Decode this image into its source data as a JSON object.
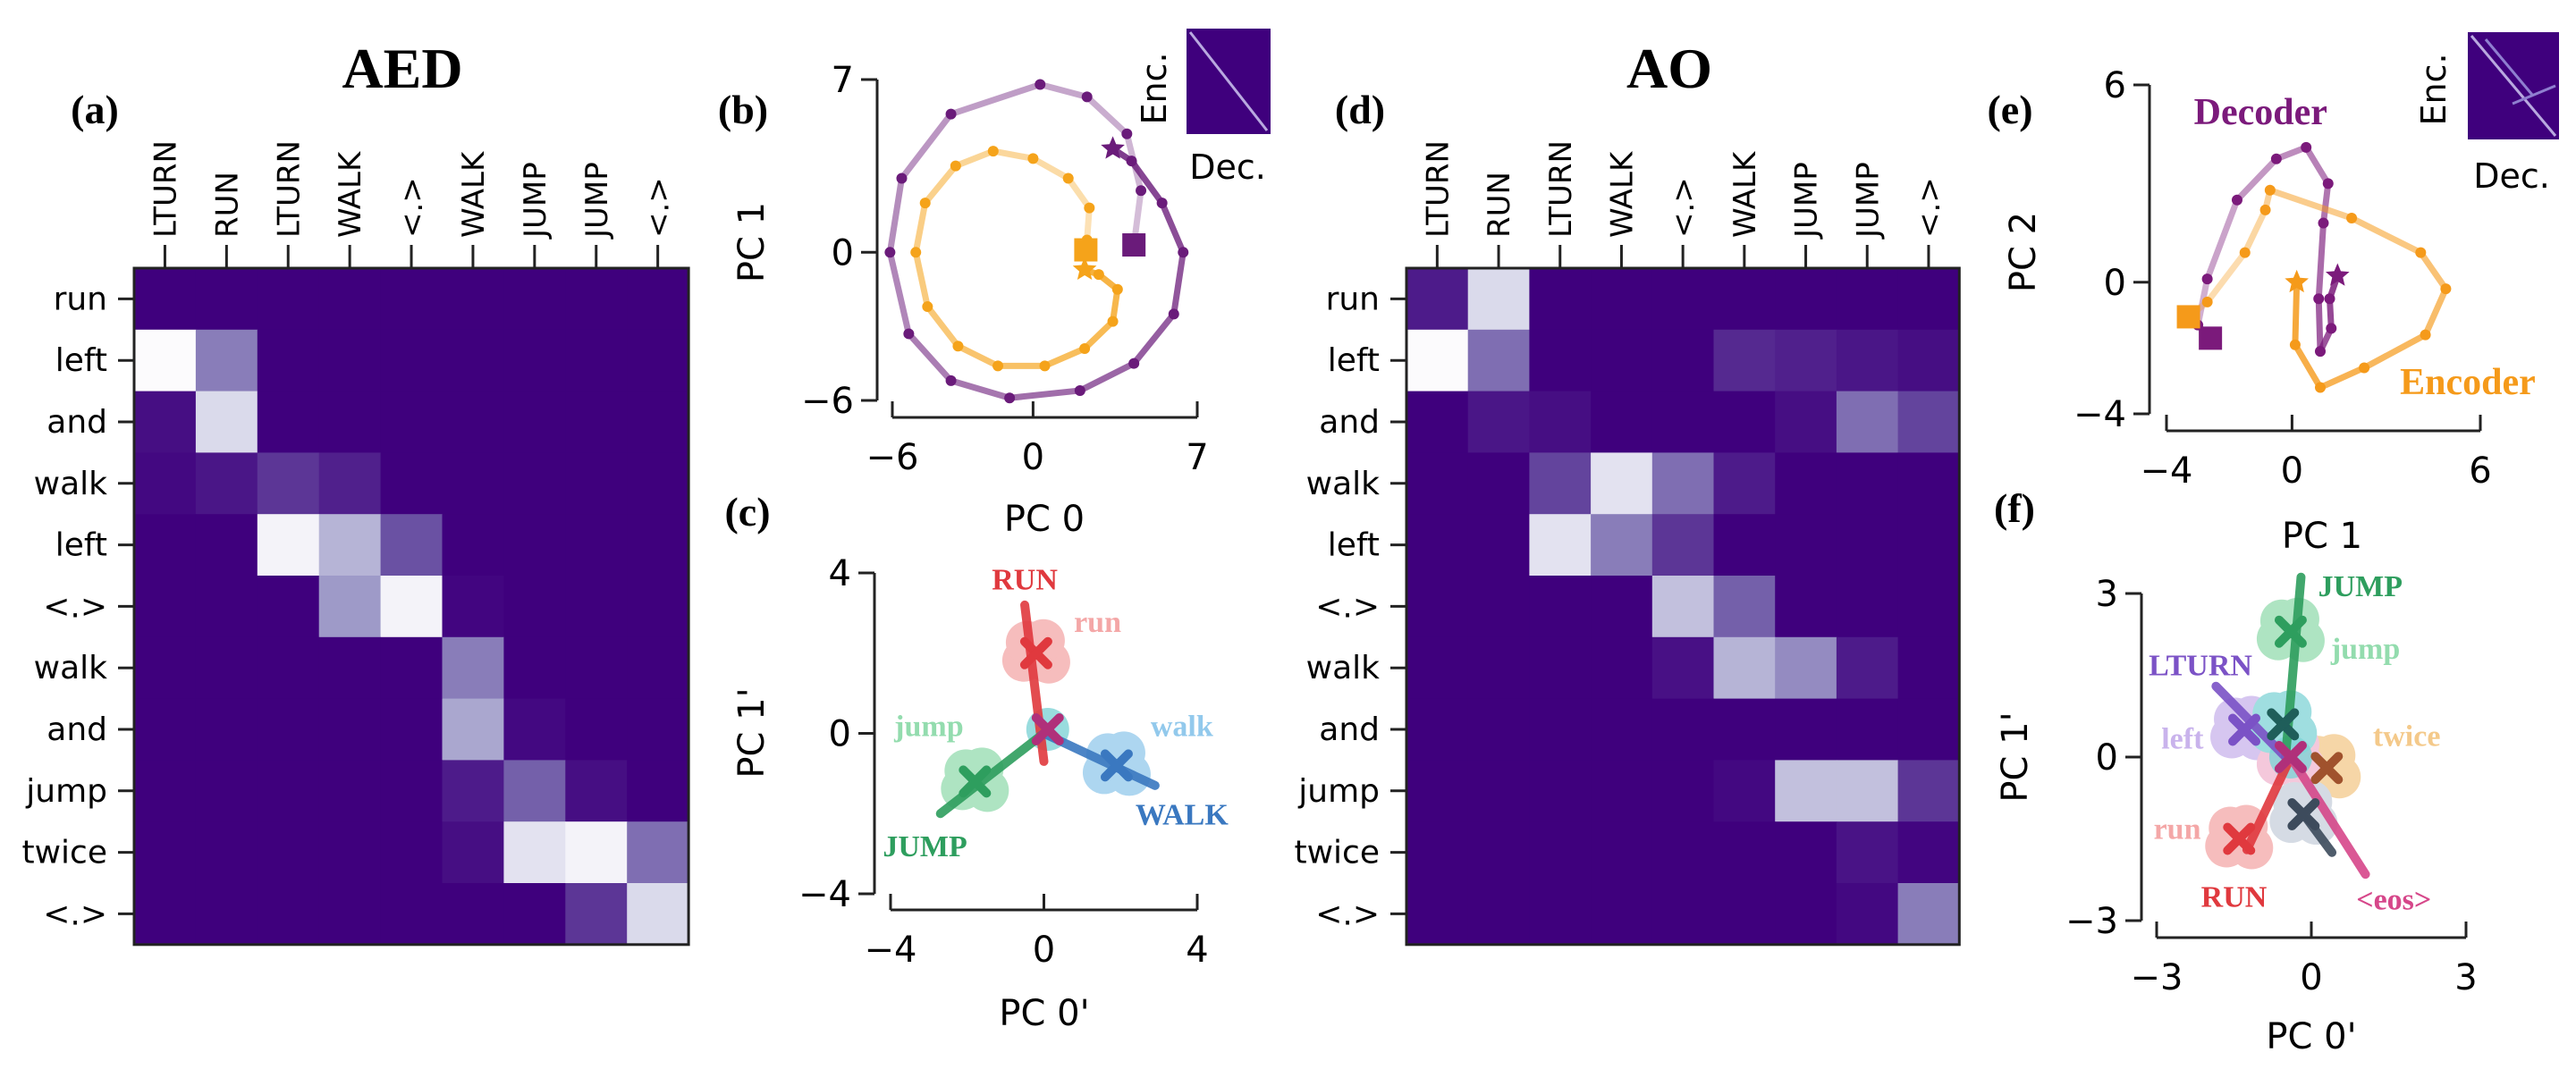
{
  "figure": {
    "left_title": "AED",
    "right_title": "AO",
    "panel_letters": [
      "(a)",
      "(b)",
      "(c)",
      "(d)",
      "(e)",
      "(f)"
    ]
  },
  "chart_data": [
    {
      "id": "a",
      "type": "heatmap",
      "colormap": "Purples",
      "cols": [
        "LTURN",
        "RUN",
        "LTURN",
        "WALK",
        "<.>",
        "WALK",
        "JUMP",
        "JUMP",
        "<.>"
      ],
      "rows": [
        "run",
        "left",
        "and",
        "walk",
        "left",
        "<.>",
        "walk",
        "and",
        "jump",
        "twice",
        "<.>"
      ],
      "values": [
        [
          0,
          0,
          0,
          0,
          0,
          0,
          0,
          0,
          0
        ],
        [
          1,
          0.45,
          0,
          0,
          0,
          0,
          0,
          0,
          0
        ],
        [
          0.05,
          0.8,
          0,
          0,
          0,
          0,
          0,
          0,
          0
        ],
        [
          0.03,
          0.08,
          0.2,
          0.12,
          0,
          0,
          0,
          0,
          0
        ],
        [
          0,
          0,
          0.95,
          0.65,
          0.3,
          0,
          0,
          0,
          0
        ],
        [
          0,
          0,
          0,
          0.55,
          0.95,
          0.02,
          0,
          0,
          0
        ],
        [
          0,
          0,
          0,
          0,
          0,
          0.45,
          0,
          0,
          0
        ],
        [
          0,
          0,
          0,
          0,
          0,
          0.6,
          0.03,
          0,
          0
        ],
        [
          0,
          0,
          0,
          0,
          0,
          0.1,
          0.35,
          0.05,
          0
        ],
        [
          0,
          0,
          0,
          0,
          0,
          0.05,
          0.85,
          0.95,
          0.4
        ],
        [
          0,
          0,
          0,
          0,
          0,
          0,
          0,
          0.2,
          0.8
        ]
      ]
    },
    {
      "id": "b",
      "type": "line",
      "xlabel": "PC 0",
      "ylabel": "PC 1",
      "xlim": [
        -6,
        7
      ],
      "ylim": [
        -6,
        7
      ],
      "xticks": [
        "−6",
        "0",
        "7"
      ],
      "yticks": [
        "−6",
        "0",
        "7"
      ],
      "inset": {
        "xlabel": "Dec.",
        "ylabel": "Enc."
      },
      "series": [
        {
          "name": "Decoder",
          "color": "#6a1b7a",
          "points": [
            [
              3.4,
              4.2
            ],
            [
              4.2,
              3.7
            ],
            [
              5.5,
              2
            ],
            [
              6.4,
              0
            ],
            [
              6,
              -2.5
            ],
            [
              4.3,
              -4.5
            ],
            [
              2,
              -5.6
            ],
            [
              -1,
              -5.9
            ],
            [
              -3.5,
              -5.2
            ],
            [
              -5.3,
              -3.3
            ],
            [
              -6.1,
              0
            ],
            [
              -5.6,
              3
            ],
            [
              -3.5,
              5.6
            ],
            [
              0.3,
              6.8
            ],
            [
              2.3,
              6.3
            ],
            [
              4,
              4.8
            ],
            [
              4.6,
              2.5
            ],
            [
              4.3,
              0.3
            ]
          ]
        },
        {
          "name": "Encoder",
          "color": "#f5a31a",
          "points": [
            [
              2.2,
              -0.7
            ],
            [
              2.8,
              -0.9
            ],
            [
              3.6,
              -1.5
            ],
            [
              3.4,
              -2.8
            ],
            [
              2.2,
              -3.9
            ],
            [
              0.5,
              -4.6
            ],
            [
              -1.5,
              -4.6
            ],
            [
              -3.2,
              -3.8
            ],
            [
              -4.5,
              -2.2
            ],
            [
              -5,
              0
            ],
            [
              -4.6,
              2
            ],
            [
              -3.3,
              3.5
            ],
            [
              -1.7,
              4.1
            ],
            [
              0,
              3.8
            ],
            [
              1.5,
              3
            ],
            [
              2.4,
              1.8
            ],
            [
              2.3,
              0.5
            ],
            [
              2.25,
              0.1
            ]
          ]
        }
      ]
    },
    {
      "id": "c",
      "type": "scatter",
      "xlabel": "PC 0'",
      "ylabel": "PC 1'",
      "xlim": [
        -4,
        4
      ],
      "ylim": [
        -4,
        4
      ],
      "xticks": [
        "−4",
        "0",
        "4"
      ],
      "yticks": [
        "−4",
        "0",
        "4"
      ],
      "groups": [
        {
          "name": "RUN",
          "input_label": "run",
          "color": "#e0393e",
          "light": "#f4a7a7",
          "line": [
            [
              -0.5,
              3.2
            ],
            [
              0,
              -0.7
            ]
          ],
          "centroid": [
            -0.2,
            2.0
          ],
          "label_pos": [
            -0.5,
            3.85
          ],
          "input_label_pos": [
            1.4,
            2.8
          ]
        },
        {
          "name": "JUMP",
          "input_label": "jump",
          "color": "#2e9e5e",
          "light": "#93dcae",
          "line": [
            [
              -2.7,
              -2.0
            ],
            [
              0,
              0
            ]
          ],
          "centroid": [
            -1.8,
            -1.2
          ],
          "label_pos": [
            -3.1,
            -2.8
          ],
          "input_label_pos": [
            -3.0,
            0.2
          ]
        },
        {
          "name": "WALK",
          "input_label": "walk",
          "color": "#3a78c0",
          "light": "#92c9ec",
          "line": [
            [
              0,
              0
            ],
            [
              2.9,
              -1.3
            ]
          ],
          "centroid": [
            1.9,
            -0.8
          ],
          "label_pos": [
            3.6,
            -2.0
          ],
          "input_label_pos": [
            3.6,
            0.2
          ]
        }
      ],
      "center": [
        0.1,
        0.1
      ]
    },
    {
      "id": "d",
      "type": "heatmap",
      "colormap": "Purples",
      "cols": [
        "LTURN",
        "RUN",
        "LTURN",
        "WALK",
        "<.>",
        "WALK",
        "JUMP",
        "JUMP",
        "<.>"
      ],
      "rows": [
        "run",
        "left",
        "and",
        "walk",
        "left",
        "<.>",
        "walk",
        "and",
        "jump",
        "twice",
        "<.>"
      ],
      "values": [
        [
          0.1,
          0.8,
          0,
          0,
          0,
          0,
          0,
          0,
          0
        ],
        [
          1,
          0.4,
          0,
          0,
          0,
          0.15,
          0.12,
          0.08,
          0.05
        ],
        [
          0,
          0.08,
          0.05,
          0,
          0,
          0,
          0.05,
          0.4,
          0.25
        ],
        [
          0,
          0,
          0.25,
          0.85,
          0.4,
          0.1,
          0,
          0,
          0
        ],
        [
          0,
          0,
          0.85,
          0.45,
          0.2,
          0,
          0,
          0,
          0
        ],
        [
          0,
          0,
          0,
          0,
          0.7,
          0.35,
          0,
          0,
          0
        ],
        [
          0,
          0,
          0,
          0,
          0.06,
          0.65,
          0.5,
          0.1,
          0
        ],
        [
          0,
          0,
          0,
          0,
          0,
          0,
          0,
          0,
          0
        ],
        [
          0,
          0,
          0,
          0,
          0,
          0.03,
          0.7,
          0.7,
          0.2
        ],
        [
          0,
          0,
          0,
          0,
          0,
          0,
          0,
          0.07,
          0.02
        ],
        [
          0,
          0,
          0,
          0,
          0,
          0,
          0,
          0.03,
          0.45
        ]
      ]
    },
    {
      "id": "e",
      "type": "line",
      "xlabel": "PC 1",
      "ylabel": "PC 2",
      "xlim": [
        -4,
        6
      ],
      "ylim": [
        -4,
        6
      ],
      "xticks": [
        "−4",
        "0",
        "6"
      ],
      "yticks": [
        "−4",
        "0",
        "6"
      ],
      "inset": {
        "xlabel": "Dec.",
        "ylabel": "Enc."
      },
      "series": [
        {
          "name": "Decoder",
          "color": "#7b1a7b",
          "label_pos": [
            -1.0,
            4.8
          ],
          "points": [
            [
              1.45,
              0.2
            ],
            [
              1.2,
              -0.5
            ],
            [
              1.25,
              -1.4
            ],
            [
              0.9,
              -2.1
            ],
            [
              0.85,
              -0.5
            ],
            [
              1.0,
              1.8
            ],
            [
              1.15,
              3.0
            ],
            [
              0.45,
              4.1
            ],
            [
              -0.5,
              3.75
            ],
            [
              -1.75,
              2.5
            ],
            [
              -2.7,
              0.1
            ],
            [
              -3,
              -1.3
            ],
            [
              -2.6,
              -1.7
            ]
          ]
        },
        {
          "name": "Encoder",
          "color": "#f59a1a",
          "label_pos": [
            5.6,
            -3.4
          ],
          "points": [
            [
              0.15,
              0
            ],
            [
              0.1,
              -1.9
            ],
            [
              0.9,
              -3.2
            ],
            [
              2.3,
              -2.6
            ],
            [
              4.25,
              -1.6
            ],
            [
              4.9,
              -0.2
            ],
            [
              4.1,
              0.9
            ],
            [
              1.9,
              1.95
            ],
            [
              -0.7,
              2.8
            ],
            [
              -0.85,
              2.2
            ],
            [
              -1.5,
              0.9
            ],
            [
              -2.7,
              -0.6
            ],
            [
              -3.3,
              -1.05
            ]
          ]
        }
      ]
    },
    {
      "id": "f",
      "type": "scatter",
      "xlabel": "PC 0'",
      "ylabel": "PC 1'",
      "xlim": [
        -3,
        3
      ],
      "ylim": [
        -3,
        3
      ],
      "xticks": [
        "−3",
        "0",
        "3"
      ],
      "yticks": [
        "−3",
        "0",
        "3"
      ],
      "groups": [
        {
          "name": "JUMP",
          "input_label": "jump",
          "color": "#2e9e5e",
          "light": "#93dcae",
          "line": [
            [
              -0.2,
              3.3
            ],
            [
              -0.5,
              0
            ]
          ],
          "centroid": [
            -0.4,
            2.3
          ],
          "label_pos": [
            0.95,
            3.15
          ],
          "input_label_pos": [
            1.05,
            2.0
          ]
        },
        {
          "name": "LTURN",
          "input_label": "left",
          "color": "#7b52c6",
          "light": "#c9b3ec",
          "line": [
            [
              -1.85,
              1.3
            ],
            [
              -0.5,
              0
            ]
          ],
          "centroid": [
            -1.3,
            0.5
          ],
          "label_pos": [
            -2.15,
            1.7
          ],
          "input_label_pos": [
            -2.5,
            0.35
          ]
        },
        {
          "name": "",
          "input_label": "twice",
          "color": "#a0522d",
          "light": "#f4c98a",
          "line": null,
          "centroid": [
            0.3,
            -0.2
          ],
          "label_pos": null,
          "input_label_pos": [
            1.85,
            0.4
          ]
        },
        {
          "name": "RUN",
          "input_label": "run",
          "color": "#e0393e",
          "light": "#f4a7a7",
          "line": [
            [
              -1.25,
              -1.7
            ],
            [
              -0.4,
              0
            ]
          ],
          "centroid": [
            -1.4,
            -1.5
          ],
          "label_pos": [
            -1.5,
            -2.55
          ],
          "input_label_pos": [
            -2.6,
            -1.3
          ]
        },
        {
          "name": "<eos>",
          "input_label": "",
          "color": "#d6478a",
          "light": "#f1b6d0",
          "line": [
            [
              -0.4,
              0
            ],
            [
              1.05,
              -2.15
            ]
          ],
          "centroid": [
            -0.4,
            0
          ],
          "label_pos": [
            1.6,
            -2.6
          ],
          "input_label_pos": null
        },
        {
          "name": "",
          "input_label": "",
          "color": "#3d4b5c",
          "light": "#c8d0dc",
          "line": [
            [
              -0.15,
              -1.05
            ],
            [
              0.4,
              -1.75
            ]
          ],
          "centroid": [
            -0.15,
            -1.05
          ],
          "label_pos": null,
          "input_label_pos": null
        },
        {
          "name": "",
          "input_label": "",
          "color": "#1f5e5a",
          "light": "#7fd3d6",
          "line": null,
          "centroid": [
            -0.55,
            0.6
          ],
          "label_pos": null,
          "input_label_pos": null
        }
      ],
      "center": [
        -0.4,
        0
      ]
    }
  ]
}
